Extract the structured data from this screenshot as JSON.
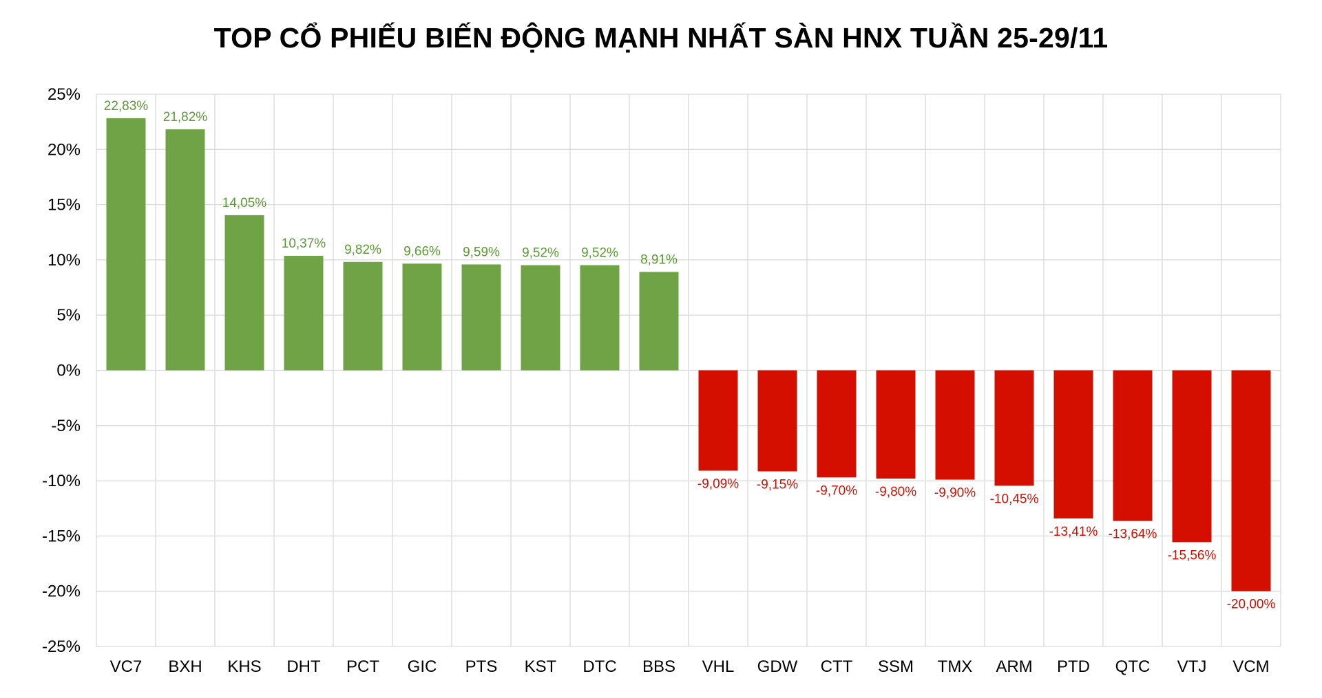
{
  "chart_data": {
    "type": "bar",
    "title": "TOP CỔ PHIẾU BIẾN ĐỘNG MẠNH NHẤT SÀN HNX TUẦN 25-29/11",
    "xlabel": "",
    "ylabel": "",
    "ylim": [
      -25,
      25
    ],
    "yticks": [
      25,
      20,
      15,
      10,
      5,
      0,
      -5,
      -10,
      -15,
      -20,
      -25
    ],
    "ytick_labels": [
      "25%",
      "20%",
      "15%",
      "10%",
      "5%",
      "0%",
      "-5%",
      "-10%",
      "-15%",
      "-20%",
      "-25%"
    ],
    "grid": true,
    "categories": [
      "VC7",
      "BXH",
      "KHS",
      "DHT",
      "PCT",
      "GIC",
      "PTS",
      "KST",
      "DTC",
      "BBS",
      "VHL",
      "GDW",
      "CTT",
      "SSM",
      "TMX",
      "ARM",
      "PTD",
      "QTC",
      "VTJ",
      "VCM"
    ],
    "values": [
      22.83,
      21.82,
      14.05,
      10.37,
      9.82,
      9.66,
      9.59,
      9.52,
      9.52,
      8.91,
      -9.09,
      -9.15,
      -9.7,
      -9.8,
      -9.9,
      -10.45,
      -13.41,
      -13.64,
      -15.56,
      -20.0
    ],
    "data_labels": [
      "22,83%",
      "21,82%",
      "14,05%",
      "10,37%",
      "9,82%",
      "9,66%",
      "9,59%",
      "9,52%",
      "9,52%",
      "8,91%",
      "-9,09%",
      "-9,15%",
      "-9,70%",
      "-9,80%",
      "-9,90%",
      "-10,45%",
      "-13,41%",
      "-13,64%",
      "-15,56%",
      "-20,00%"
    ],
    "colors": {
      "positive_bar": "#70a346",
      "positive_label": "#5a9a33",
      "negative_bar": "#d40f00",
      "negative_label": "#d40f00",
      "grid": "#d9d9d9"
    }
  }
}
